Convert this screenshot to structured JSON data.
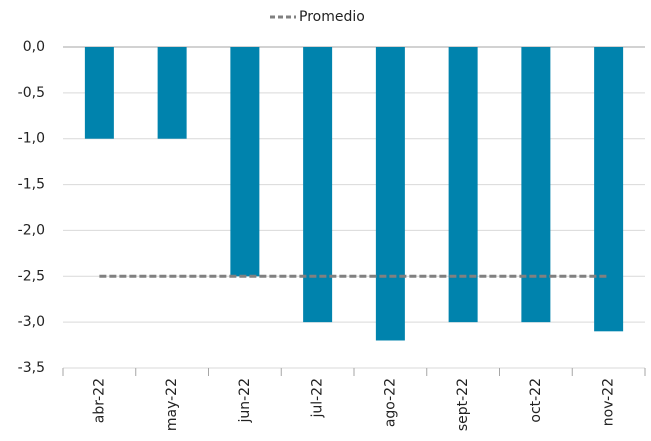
{
  "chart_data": {
    "type": "bar",
    "categories": [
      "abr-22",
      "may-22",
      "jun-22",
      "jul-22",
      "ago-22",
      "sept-22",
      "oct-22",
      "nov-22"
    ],
    "values": [
      -1.0,
      -1.0,
      -2.5,
      -3.0,
      -3.2,
      -3.0,
      -3.0,
      -3.1
    ],
    "color": "#0083ad",
    "average": {
      "name": "Promedio",
      "values": [
        -2.5,
        -2.5,
        -2.5,
        -2.5,
        -2.5,
        -2.5,
        -2.5,
        -2.5
      ],
      "color": "#808080"
    },
    "ylim": [
      -3.5,
      0
    ],
    "yticks": [
      {
        "value": 0,
        "label": "0,0"
      },
      {
        "value": -0.5,
        "label": "-0,5"
      },
      {
        "value": -1,
        "label": "-1,0"
      },
      {
        "value": -1.5,
        "label": "-1,5"
      },
      {
        "value": -2,
        "label": "-2,0"
      },
      {
        "value": -2.5,
        "label": "-2,5"
      },
      {
        "value": -3,
        "label": "-3,0"
      },
      {
        "value": -3.5,
        "label": "-3,5"
      }
    ],
    "grid": true
  }
}
